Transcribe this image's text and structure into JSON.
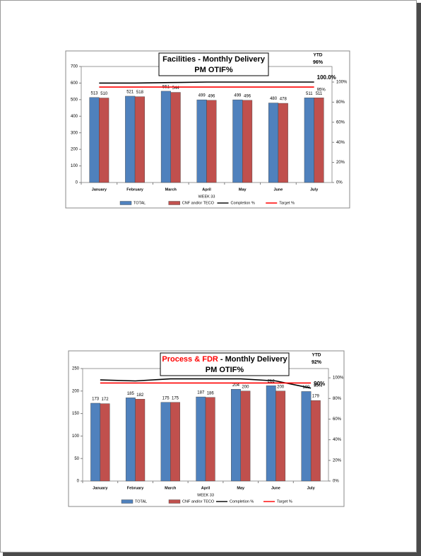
{
  "chart_data": [
    {
      "type": "bar",
      "title_parts": [
        {
          "text": "Facilities - Monthly Delivery",
          "color": "#000000"
        }
      ],
      "subtitle": "PM OTIF%",
      "ytd_label": "YTD",
      "ytd_value": "96%",
      "x_label": "WEEK 33",
      "categories": [
        "January",
        "February",
        "March",
        "April",
        "May",
        "June",
        "July"
      ],
      "series": [
        {
          "name": "TOTAL",
          "type": "bar",
          "color": "#4f81bd",
          "values": [
            513,
            521,
            551,
            499,
            499,
            480,
            511
          ]
        },
        {
          "name": "CNF and/or TECO",
          "type": "bar",
          "color": "#c0504d",
          "values": [
            510,
            518,
            544,
            496,
            496,
            478,
            511
          ]
        },
        {
          "name": "Completion %",
          "type": "line",
          "axis": "y2",
          "color": "#000000",
          "values": [
            99,
            99,
            99.5,
            100,
            100,
            100,
            100
          ],
          "value_labels": [
            null,
            null,
            null,
            null,
            null,
            null,
            "100.0%"
          ]
        },
        {
          "name": "Target %",
          "type": "line",
          "axis": "y2",
          "color": "#ff0000",
          "values": [
            95,
            95,
            95,
            95,
            95,
            95,
            95
          ],
          "value_labels": [
            null,
            null,
            null,
            null,
            null,
            null,
            "95%"
          ]
        }
      ],
      "ylim": [
        0,
        700
      ],
      "yticks": [
        0,
        100,
        200,
        300,
        400,
        500,
        600,
        700
      ],
      "y2lim": [
        0,
        115.5
      ],
      "y2ticks": [
        {
          "value": 0,
          "label": "0%"
        },
        {
          "value": 20,
          "label": "20%"
        },
        {
          "value": 40,
          "label": "40%"
        },
        {
          "value": 60,
          "label": "60%"
        },
        {
          "value": 80,
          "label": "80%"
        },
        {
          "value": 100,
          "label": "100%"
        }
      ],
      "legend": "bottom"
    },
    {
      "type": "bar",
      "title_parts": [
        {
          "text": "Process & FDR",
          "color": "#ff0000"
        },
        {
          "text": " - Monthly Delivery",
          "color": "#000000"
        }
      ],
      "subtitle": "PM OTIF%",
      "ytd_label": "YTD",
      "ytd_value": "92%",
      "x_label": "WEEK 33",
      "categories": [
        "January",
        "February",
        "March",
        "April",
        "May",
        "June",
        "July"
      ],
      "series": [
        {
          "name": "TOTAL",
          "type": "bar",
          "color": "#4f81bd",
          "values": [
            173,
            185,
            175,
            187,
            204,
            212,
            199
          ]
        },
        {
          "name": "CNF and/or TECO",
          "type": "bar",
          "color": "#c0504d",
          "values": [
            172,
            182,
            175,
            186,
            200,
            200,
            179
          ]
        },
        {
          "name": "Completion %",
          "type": "line",
          "axis": "y2",
          "color": "#000000",
          "values": [
            98,
            97,
            99,
            99,
            99,
            97,
            90
          ],
          "value_labels": [
            null,
            null,
            null,
            null,
            null,
            null,
            "90%"
          ]
        },
        {
          "name": "Target %",
          "type": "line",
          "axis": "y2",
          "color": "#ff0000",
          "values": [
            95,
            95,
            95,
            95,
            95,
            95,
            95
          ],
          "value_labels": [
            null,
            null,
            null,
            null,
            null,
            null,
            "95%"
          ]
        }
      ],
      "ylim": [
        0,
        250
      ],
      "yticks": [
        0,
        50,
        100,
        150,
        200,
        250
      ],
      "y2lim": [
        0,
        109
      ],
      "y2ticks": [
        {
          "value": 0,
          "label": "0%"
        },
        {
          "value": 20,
          "label": "20%"
        },
        {
          "value": 40,
          "label": "40%"
        },
        {
          "value": 60,
          "label": "60%"
        },
        {
          "value": 80,
          "label": "80%"
        },
        {
          "value": 100,
          "label": "100%"
        }
      ],
      "legend": "bottom"
    }
  ]
}
